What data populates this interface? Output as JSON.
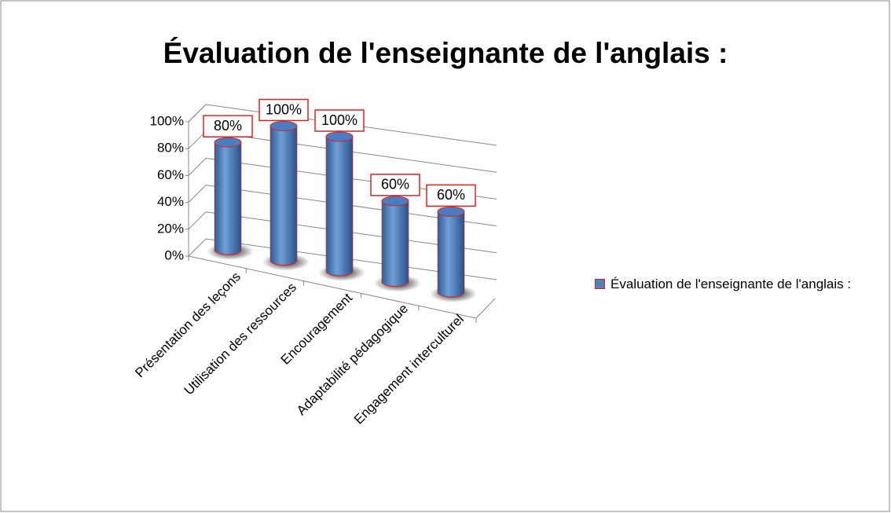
{
  "chart_data": {
    "type": "bar3d",
    "title": "Évaluation de l'enseignante de l'anglais :",
    "categories": [
      "Présentation des leçons",
      "Utilisation des ressources",
      "Encouragement",
      "Adaptabilité pédagogique",
      "Engagement interculturel"
    ],
    "series": [
      {
        "name": "Évaluation de l'enseignante de l'anglais :",
        "color": "#4f81bd",
        "edge_color": "#e02020",
        "values": [
          80,
          100,
          100,
          60,
          60
        ],
        "value_labels": [
          "80%",
          "100%",
          "100%",
          "60%",
          "60%"
        ]
      }
    ],
    "ylim": [
      0,
      100
    ],
    "yticks": [
      {
        "value": 0,
        "label": "0%"
      },
      {
        "value": 20,
        "label": "20%"
      },
      {
        "value": 40,
        "label": "40%"
      },
      {
        "value": 60,
        "label": "60%"
      },
      {
        "value": 80,
        "label": "80%"
      },
      {
        "value": 100,
        "label": "100%"
      }
    ],
    "grid": true,
    "legend": "right"
  }
}
